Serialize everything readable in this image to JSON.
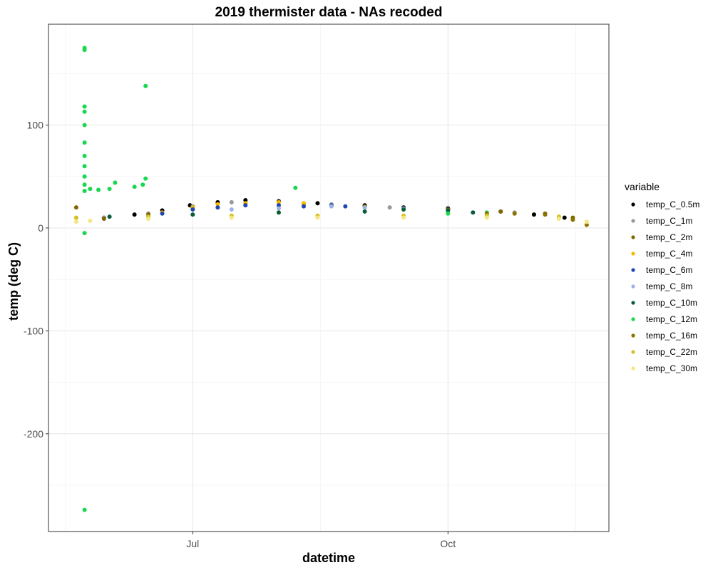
{
  "chart_data": {
    "type": "scatter",
    "title": "2019 thermister data - NAs recoded",
    "xlabel": "datetime",
    "ylabel": "temp (deg C)",
    "x_type": "date",
    "xlim": [
      "2019-05-10",
      "2019-11-28"
    ],
    "ylim": [
      -295,
      198
    ],
    "x_ticks": [
      {
        "date": "2019-07-01",
        "label": "Jul"
      },
      {
        "date": "2019-10-01",
        "label": "Oct"
      }
    ],
    "y_ticks": [
      {
        "value": 100,
        "label": "100"
      },
      {
        "value": 0,
        "label": "0"
      },
      {
        "value": -100,
        "label": "-100"
      },
      {
        "value": -200,
        "label": "-200"
      }
    ],
    "grid": true,
    "legend": {
      "title": "variable",
      "placement": "right",
      "entries": [
        {
          "name": "temp_C_0.5m",
          "color": "#000000"
        },
        {
          "name": "temp_C_1m",
          "color": "#999999"
        },
        {
          "name": "temp_C_2m",
          "color": "#806600"
        },
        {
          "name": "temp_C_4m",
          "color": "#f5b800"
        },
        {
          "name": "temp_C_6m",
          "color": "#1f45b5"
        },
        {
          "name": "temp_C_8m",
          "color": "#99b3e6"
        },
        {
          "name": "temp_C_10m",
          "color": "#0a5c38"
        },
        {
          "name": "temp_C_12m",
          "color": "#17d94f"
        },
        {
          "name": "temp_C_16m",
          "color": "#8a7300"
        },
        {
          "name": "temp_C_22m",
          "color": "#d1c222"
        },
        {
          "name": "temp_C_30m",
          "color": "#f5e680"
        }
      ]
    },
    "series": [
      {
        "name": "temp_C_0.5m",
        "color": "#000000",
        "points": [
          [
            "2019-05-30",
            10
          ],
          [
            "2019-06-10",
            13
          ],
          [
            "2019-06-20",
            17
          ],
          [
            "2019-06-30",
            22
          ],
          [
            "2019-07-10",
            25
          ],
          [
            "2019-07-20",
            27
          ],
          [
            "2019-08-01",
            26
          ],
          [
            "2019-08-15",
            24
          ],
          [
            "2019-09-01",
            22
          ],
          [
            "2019-09-15",
            20
          ],
          [
            "2019-10-01",
            19
          ],
          [
            "2019-10-20",
            16
          ],
          [
            "2019-11-01",
            13
          ],
          [
            "2019-11-12",
            10
          ]
        ]
      },
      {
        "name": "temp_C_1m",
        "color": "#999999",
        "points": [
          [
            "2019-05-30",
            10
          ],
          [
            "2019-06-15",
            14
          ],
          [
            "2019-07-01",
            21
          ],
          [
            "2019-07-15",
            25
          ],
          [
            "2019-08-01",
            25
          ],
          [
            "2019-08-20",
            23
          ],
          [
            "2019-09-10",
            20
          ],
          [
            "2019-10-01",
            18
          ],
          [
            "2019-10-25",
            15
          ],
          [
            "2019-11-10",
            11
          ]
        ]
      },
      {
        "name": "temp_C_2m",
        "color": "#806600",
        "points": [
          [
            "2019-05-20",
            20
          ],
          [
            "2019-05-30",
            9
          ],
          [
            "2019-06-15",
            13
          ],
          [
            "2019-07-01",
            20
          ],
          [
            "2019-07-20",
            24
          ],
          [
            "2019-08-10",
            23
          ],
          [
            "2019-09-01",
            21
          ],
          [
            "2019-10-01",
            18
          ],
          [
            "2019-10-20",
            16
          ],
          [
            "2019-11-05",
            14
          ],
          [
            "2019-11-15",
            10
          ]
        ]
      },
      {
        "name": "temp_C_4m",
        "color": "#f5b800",
        "points": [
          [
            "2019-06-20",
            15
          ],
          [
            "2019-07-01",
            20
          ],
          [
            "2019-07-10",
            23
          ],
          [
            "2019-07-20",
            24
          ],
          [
            "2019-08-01",
            25
          ],
          [
            "2019-08-10",
            24
          ],
          [
            "2019-08-20",
            22
          ]
        ]
      },
      {
        "name": "temp_C_6m",
        "color": "#1f45b5",
        "points": [
          [
            "2019-06-20",
            14
          ],
          [
            "2019-07-01",
            18
          ],
          [
            "2019-07-10",
            20
          ],
          [
            "2019-07-20",
            22
          ],
          [
            "2019-08-01",
            22
          ],
          [
            "2019-08-10",
            21
          ],
          [
            "2019-08-20",
            22
          ],
          [
            "2019-08-25",
            21
          ]
        ]
      },
      {
        "name": "temp_C_8m",
        "color": "#99b3e6",
        "points": [
          [
            "2019-07-15",
            18
          ],
          [
            "2019-08-01",
            19
          ],
          [
            "2019-08-20",
            21
          ],
          [
            "2019-09-01",
            20
          ],
          [
            "2019-09-15",
            19
          ],
          [
            "2019-10-01",
            17
          ]
        ]
      },
      {
        "name": "temp_C_10m",
        "color": "#0a5c38",
        "points": [
          [
            "2019-06-01",
            11
          ],
          [
            "2019-07-01",
            13
          ],
          [
            "2019-08-01",
            15
          ],
          [
            "2019-09-01",
            16
          ],
          [
            "2019-09-15",
            18
          ],
          [
            "2019-10-01",
            17
          ],
          [
            "2019-10-10",
            15
          ]
        ]
      },
      {
        "name": "temp_C_12m",
        "color": "#17d94f",
        "points": [
          [
            "2019-05-23",
            36
          ],
          [
            "2019-05-23",
            -5
          ],
          [
            "2019-05-23",
            175
          ],
          [
            "2019-05-23",
            173
          ],
          [
            "2019-05-23",
            -274
          ],
          [
            "2019-05-23",
            118
          ],
          [
            "2019-05-23",
            113
          ],
          [
            "2019-05-23",
            100
          ],
          [
            "2019-05-23",
            83
          ],
          [
            "2019-05-23",
            70
          ],
          [
            "2019-05-23",
            60
          ],
          [
            "2019-05-23",
            50
          ],
          [
            "2019-05-23",
            42
          ],
          [
            "2019-05-25",
            38
          ],
          [
            "2019-05-28",
            37
          ],
          [
            "2019-06-01",
            38
          ],
          [
            "2019-06-03",
            44
          ],
          [
            "2019-06-10",
            40
          ],
          [
            "2019-06-13",
            42
          ],
          [
            "2019-06-14",
            48
          ],
          [
            "2019-06-14",
            138
          ],
          [
            "2019-08-07",
            39
          ],
          [
            "2019-10-01",
            14
          ],
          [
            "2019-10-15",
            15
          ]
        ]
      },
      {
        "name": "temp_C_16m",
        "color": "#8a7300",
        "points": [
          [
            "2019-10-15",
            14
          ],
          [
            "2019-10-25",
            14
          ],
          [
            "2019-11-05",
            13
          ],
          [
            "2019-11-15",
            8
          ],
          [
            "2019-11-20",
            3
          ]
        ]
      },
      {
        "name": "temp_C_22m",
        "color": "#d1c222",
        "points": [
          [
            "2019-05-20",
            10
          ],
          [
            "2019-06-15",
            11
          ],
          [
            "2019-07-15",
            12
          ],
          [
            "2019-08-15",
            12
          ],
          [
            "2019-09-15",
            12
          ],
          [
            "2019-10-15",
            12
          ],
          [
            "2019-11-10",
            11
          ]
        ]
      },
      {
        "name": "temp_C_30m",
        "color": "#f5e680",
        "points": [
          [
            "2019-05-20",
            6
          ],
          [
            "2019-05-25",
            7
          ],
          [
            "2019-06-15",
            9
          ],
          [
            "2019-07-15",
            10
          ],
          [
            "2019-08-15",
            10
          ],
          [
            "2019-09-15",
            10
          ],
          [
            "2019-10-15",
            10
          ],
          [
            "2019-11-10",
            9
          ],
          [
            "2019-11-20",
            6
          ]
        ]
      }
    ]
  }
}
